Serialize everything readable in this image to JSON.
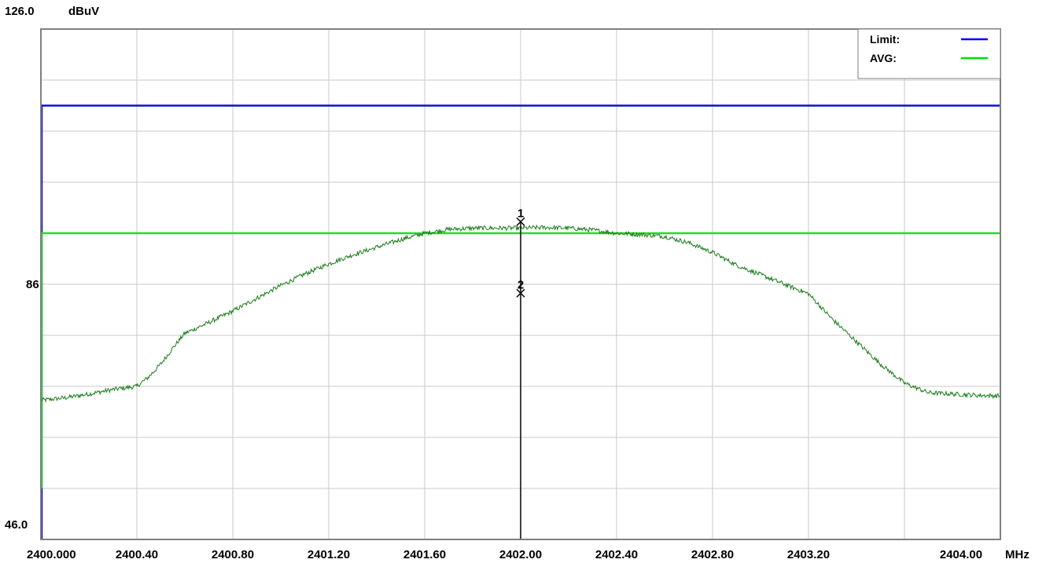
{
  "chart_data": {
    "type": "line",
    "ylabel": "dBuV",
    "xunit": "MHz",
    "ylim": [
      46.0,
      126.0
    ],
    "xlim": [
      2400.0,
      2404.0
    ],
    "y_tick_labels": [
      {
        "value": 126.0,
        "label": "126.0"
      },
      {
        "value": 86,
        "label": "86"
      },
      {
        "value": 46.0,
        "label": "46.0"
      }
    ],
    "x_tick_labels": [
      {
        "value": 2400.0,
        "label": "2400.000"
      },
      {
        "value": 2400.4,
        "label": "2400.40"
      },
      {
        "value": 2400.8,
        "label": "2400.80"
      },
      {
        "value": 2401.2,
        "label": "2401.20"
      },
      {
        "value": 2401.6,
        "label": "2401.60"
      },
      {
        "value": 2402.0,
        "label": "2402.00"
      },
      {
        "value": 2402.4,
        "label": "2402.40"
      },
      {
        "value": 2402.8,
        "label": "2402.80"
      },
      {
        "value": 2403.2,
        "label": "2403.20"
      },
      {
        "value": 2404.0,
        "label": "2404.00"
      }
    ],
    "grid": true,
    "grid_x": [
      2400.4,
      2400.8,
      2401.2,
      2401.6,
      2402.0,
      2402.4,
      2402.8,
      2403.2,
      2403.6
    ],
    "grid_y": [
      54,
      62,
      70,
      78,
      86,
      94,
      102,
      110,
      118
    ],
    "legend_position": "top-right",
    "legend": [
      {
        "label": "Limit:",
        "color": "#0000ff"
      },
      {
        "label": "AVG:",
        "color": "#00e000"
      }
    ],
    "limit_lines": [
      {
        "name": "Limit",
        "value": 114,
        "color": "#1010d0",
        "start_y": 46.0
      },
      {
        "name": "AVG",
        "value": 94,
        "color": "#22dd22",
        "start_y": 54
      }
    ],
    "series": [
      {
        "color": "#1a7d1a",
        "x": [
          2400.0,
          2400.1,
          2400.2,
          2400.3,
          2400.4,
          2400.45,
          2400.5,
          2400.55,
          2400.6,
          2400.7,
          2400.8,
          2400.9,
          2401.0,
          2401.1,
          2401.2,
          2401.3,
          2401.4,
          2401.5,
          2401.6,
          2401.7,
          2401.8,
          2401.9,
          2402.0,
          2402.1,
          2402.2,
          2402.3,
          2402.4,
          2402.5,
          2402.6,
          2402.7,
          2402.8,
          2402.9,
          2403.0,
          2403.1,
          2403.2,
          2403.25,
          2403.3,
          2403.4,
          2403.5,
          2403.6,
          2403.7,
          2403.8,
          2403.9,
          2404.0
        ],
        "values": [
          67.8,
          68.2,
          68.8,
          69.5,
          70.0,
          71.5,
          73.5,
          76.0,
          78.3,
          80.0,
          81.8,
          83.8,
          85.8,
          87.6,
          89.2,
          90.6,
          91.8,
          93.0,
          94.0,
          94.6,
          94.8,
          94.8,
          94.8,
          94.9,
          94.8,
          94.5,
          94.0,
          93.8,
          93.5,
          92.5,
          91.0,
          89.0,
          87.5,
          86.0,
          84.5,
          82.5,
          80.5,
          77.0,
          73.5,
          70.5,
          69.0,
          68.8,
          68.6,
          68.5
        ]
      }
    ],
    "markers": [
      {
        "label": "1",
        "x": 2402.0,
        "y": 95.8
      },
      {
        "label": "2",
        "x": 2402.0,
        "y": 84.6
      }
    ],
    "marker_line_x": 2402.0
  }
}
